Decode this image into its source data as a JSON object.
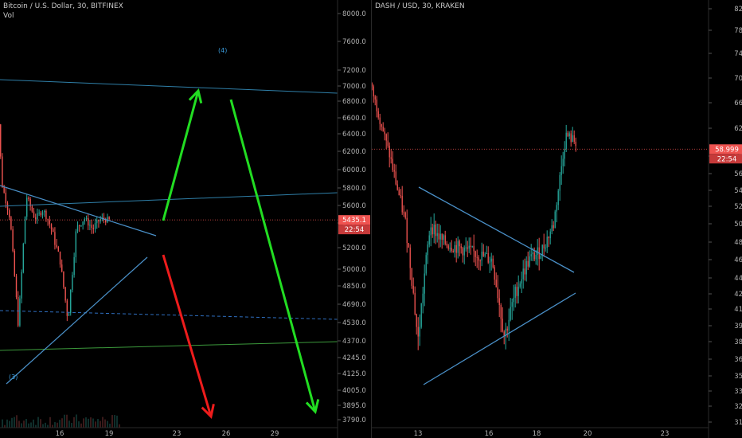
{
  "colors": {
    "background": "#000000",
    "up_candle": "#26a69a",
    "down_candle": "#ef5350",
    "price_line": "#ef5350",
    "trend_line": "#4a90c8",
    "green_arrow": "#22dd22",
    "red_arrow": "#ee1c1c",
    "support_line": "#3c9a3c"
  },
  "left_panel": {
    "title": "Bitcoin / U.S. Dollar, 30, BITFINEX",
    "subtitle": "Vol",
    "label_4": "(4)",
    "label_3": "(3)",
    "price_tag": "5435.1",
    "time_tag": "22:54"
  },
  "right_panel": {
    "title": "DASH / USD, 30, KRAKEN",
    "price_tag": "58.999",
    "time_tag": "22:54"
  },
  "chart_data": [
    {
      "type": "candlestick",
      "title": "Bitcoin / U.S. Dollar, 30, BITFINEX",
      "y_ticks": [
        "8000.0",
        "7600.0",
        "7200.0",
        "7000.0",
        "6800.0",
        "6600.0",
        "6400.0",
        "6200.0",
        "6000.0",
        "5800.0",
        "5600.0",
        "5400.0",
        "5200.0",
        "5000.0",
        "4850.0",
        "4690.0",
        "4530.0",
        "4370.0",
        "4245.0",
        "4125.0",
        "4005.0",
        "3895.0",
        "3790.0"
      ],
      "x_ticks": [
        "16",
        "19",
        "23",
        "26",
        "29"
      ],
      "ylim": [
        3790,
        8000
      ],
      "current_price": 5435.1,
      "close_path": [
        [
          12,
          7700
        ],
        [
          12.5,
          5850
        ],
        [
          13,
          5450
        ],
        [
          13.5,
          4500
        ],
        [
          14,
          5700
        ],
        [
          14.5,
          5450
        ],
        [
          15,
          5550
        ],
        [
          15.5,
          5350
        ],
        [
          16,
          5100
        ],
        [
          16.5,
          4550
        ],
        [
          17,
          5350
        ],
        [
          17.5,
          5450
        ],
        [
          18,
          5350
        ],
        [
          18.5,
          5450
        ],
        [
          19,
          5430
        ]
      ],
      "projection_arrows": [
        {
          "color": "green",
          "from": [
            21.2,
            5450
          ],
          "to": [
            22.6,
            6950
          ]
        },
        {
          "color": "green",
          "from": [
            23.3,
            6850
          ],
          "to": [
            27.6,
            3830
          ]
        },
        {
          "color": "red",
          "from": [
            21.2,
            5200
          ],
          "to": [
            23.0,
            3780
          ]
        }
      ]
    },
    {
      "type": "candlestick",
      "title": "DASH / USD, 30, KRAKEN",
      "y_ticks": [
        "82.000",
        "78.000",
        "74.000",
        "70.000",
        "66.000",
        "62.000",
        "58.000",
        "56.000",
        "54.000",
        "52.000",
        "50.000",
        "48.000",
        "46.000",
        "44.000",
        "42.500",
        "41.000",
        "39.500",
        "38.000",
        "36.500",
        "35.100",
        "33.900",
        "32.700",
        "31.600"
      ],
      "x_ticks": [
        "13",
        "16",
        "18",
        "20",
        "23"
      ],
      "ylim": [
        31.6,
        82
      ],
      "current_price": 58.999,
      "close_path": [
        [
          9.2,
          76
        ],
        [
          10,
          74
        ],
        [
          11,
          70
        ],
        [
          11.7,
          60
        ],
        [
          12.5,
          50
        ],
        [
          13,
          38
        ],
        [
          13.5,
          50
        ],
        [
          14,
          48
        ],
        [
          15,
          47
        ],
        [
          16,
          46
        ],
        [
          16.5,
          38.5
        ],
        [
          17,
          43
        ],
        [
          17.5,
          46
        ],
        [
          18,
          47
        ],
        [
          18.5,
          50
        ],
        [
          19,
          61
        ],
        [
          19.4,
          60
        ]
      ]
    }
  ]
}
